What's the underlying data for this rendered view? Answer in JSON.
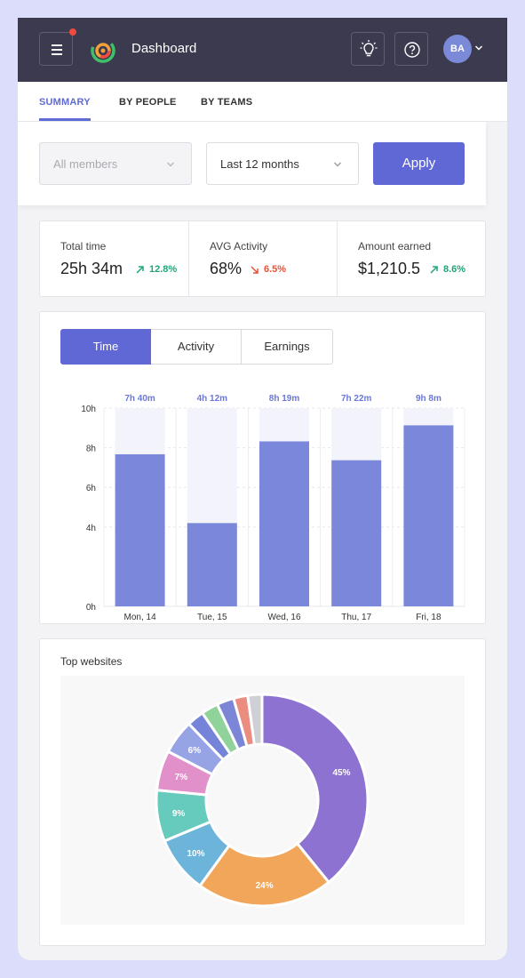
{
  "header": {
    "title": "Dashboard",
    "avatar_initials": "BA",
    "icons": [
      "menu-icon",
      "lightbulb-icon",
      "help-icon",
      "chevron-down-icon"
    ]
  },
  "tabs": [
    {
      "label": "SUMMARY",
      "active": true
    },
    {
      "label": "BY PEOPLE",
      "active": false
    },
    {
      "label": "BY TEAMS",
      "active": false
    }
  ],
  "filters": {
    "members": "All members",
    "period": "Last 12 months",
    "apply_label": "Apply"
  },
  "stats": [
    {
      "label": "Total time",
      "value": "25h 34m",
      "change": "12.8%",
      "direction": "up"
    },
    {
      "label": "AVG Activity",
      "value": "68%",
      "change": "6.5%",
      "direction": "down"
    },
    {
      "label": "Amount earned",
      "value": "$1,210.5",
      "change": "8.6%",
      "direction": "up"
    }
  ],
  "chart_tabs": [
    {
      "label": "Time",
      "active": true
    },
    {
      "label": "Activity",
      "active": false
    },
    {
      "label": "Earnings",
      "active": false
    }
  ],
  "colors": {
    "accent": "#6068d6",
    "bar": "#7a87da",
    "bar_bg": "#f3f4fb",
    "up": "#1fa67a",
    "down": "#ea5036",
    "topbar": "#3c3a4f"
  },
  "chart_data": {
    "type": "bar",
    "categories": [
      "Mon, 14",
      "Tue, 15",
      "Wed, 16",
      "Thu, 17",
      "Fri, 18"
    ],
    "values": [
      7.67,
      4.2,
      8.32,
      7.37,
      9.13
    ],
    "data_labels": [
      "7h 40m",
      "4h 12m",
      "8h 19m",
      "7h 22m",
      "9h 8m"
    ],
    "y_ticks": [
      "0h",
      "4h",
      "6h",
      "8h",
      "10h"
    ],
    "ylim": [
      0,
      10
    ],
    "grid": true
  },
  "websites": {
    "title": "Top websites",
    "chart_data": {
      "type": "pie",
      "values": [
        45,
        24,
        10,
        9,
        7,
        6,
        3,
        3,
        3,
        2.5,
        2.5
      ],
      "labels": [
        "45%",
        "24%",
        "10%",
        "9%",
        "7%",
        "6%",
        "",
        "",
        "",
        "",
        ""
      ],
      "colors": [
        "#8e72d1",
        "#f2a65a",
        "#6cb4da",
        "#66cbbd",
        "#e290c9",
        "#96a3e4",
        "#7583d8",
        "#8fd39a",
        "#7b86d6",
        "#ea8c7f",
        "#cfd0d6"
      ]
    }
  }
}
